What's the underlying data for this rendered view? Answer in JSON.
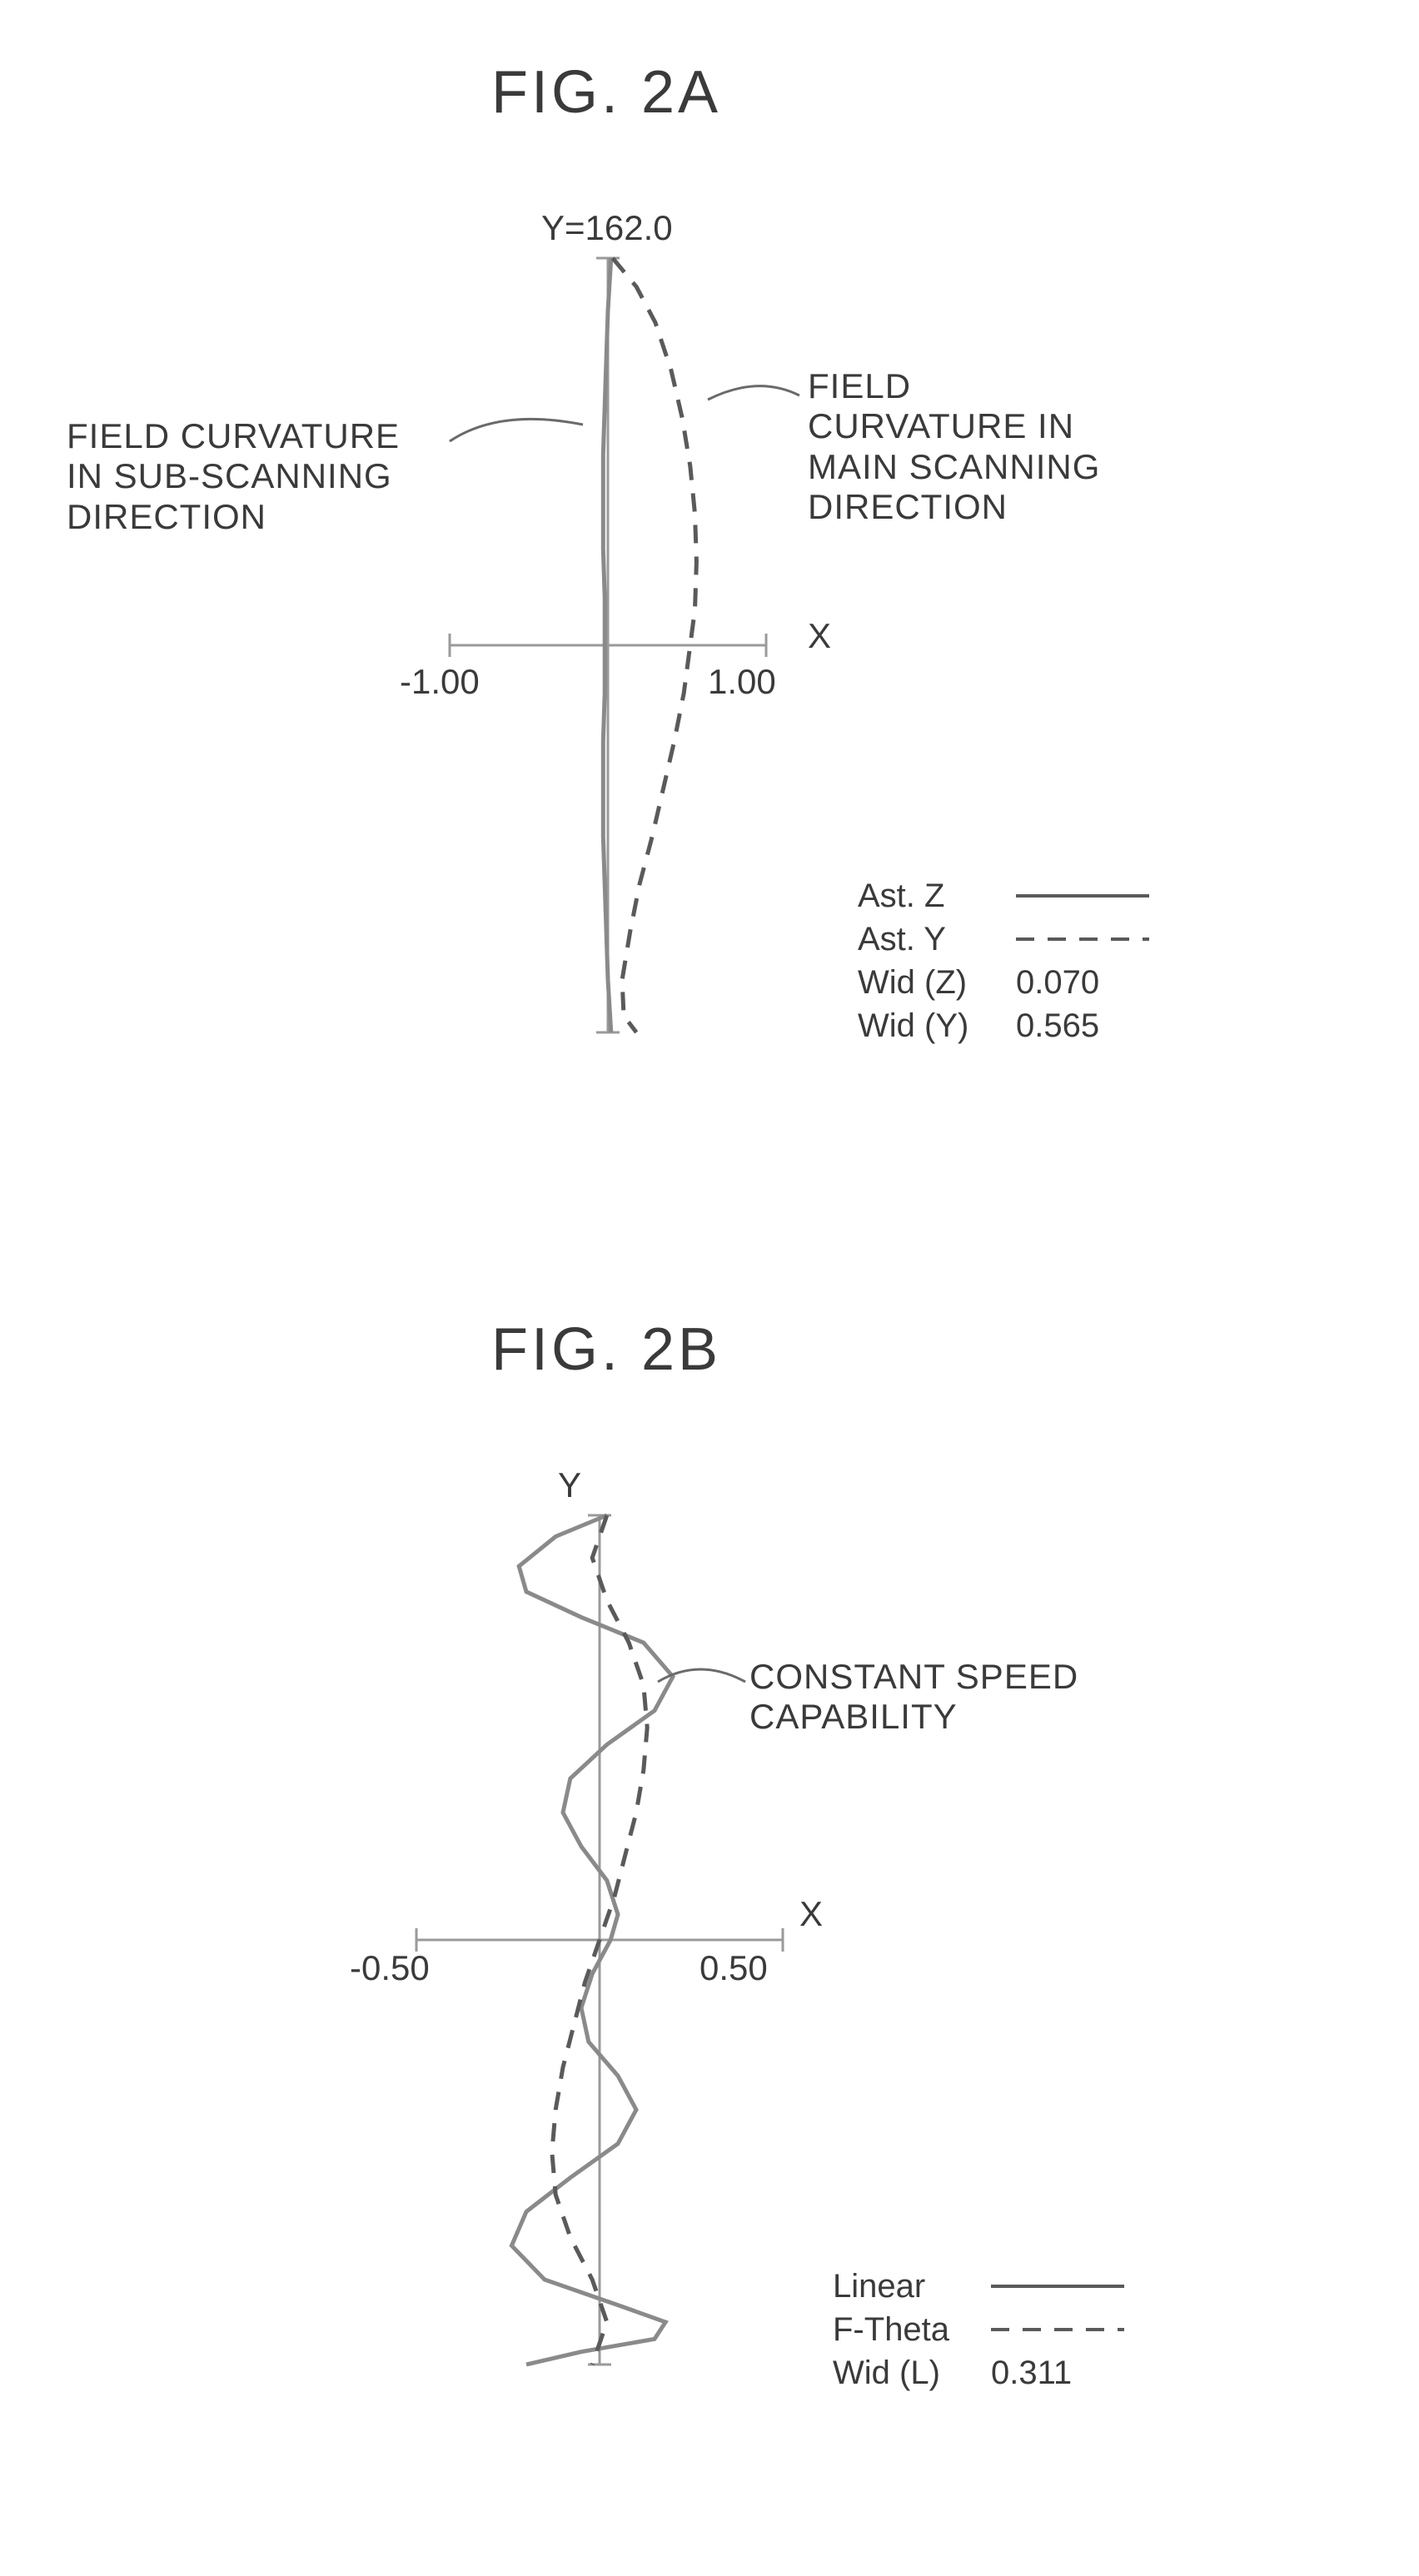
{
  "figA": {
    "title": "FIG. 2A",
    "chart": {
      "type": "field-curvature",
      "y_top_label": "Y=162.0",
      "x_axis_label": "X",
      "xlim": [
        -1.0,
        1.0
      ],
      "xtick_labels": [
        "-1.00",
        "1.00"
      ],
      "y_range": [
        -162.0,
        162.0
      ],
      "background_color": "#ffffff",
      "axis_color": "#9a9a9a",
      "axis_width": 3,
      "tick_len": 18,
      "annotations": {
        "left": {
          "text_lines": [
            "FIELD CURVATURE",
            "IN SUB-SCANNING",
            "DIRECTION"
          ]
        },
        "right": {
          "text_lines": [
            "FIELD",
            "CURVATURE IN",
            "MAIN SCANNING",
            "DIRECTION"
          ]
        }
      },
      "series": [
        {
          "name": "Ast. Z",
          "legend_label": "Ast. Z",
          "style": "solid",
          "color": "#8a8a8a",
          "width": 5,
          "points": [
            [
              0.02,
              162
            ],
            [
              0.0,
              140
            ],
            [
              -0.01,
              120
            ],
            [
              -0.02,
              100
            ],
            [
              -0.03,
              80
            ],
            [
              -0.03,
              60
            ],
            [
              -0.03,
              40
            ],
            [
              -0.02,
              20
            ],
            [
              -0.02,
              0
            ],
            [
              -0.02,
              -20
            ],
            [
              -0.03,
              -40
            ],
            [
              -0.03,
              -60
            ],
            [
              -0.03,
              -80
            ],
            [
              -0.02,
              -100
            ],
            [
              -0.01,
              -120
            ],
            [
              0.0,
              -140
            ],
            [
              0.02,
              -162
            ]
          ]
        },
        {
          "name": "Ast. Y",
          "legend_label": "Ast. Y",
          "style": "dashed",
          "color": "#5a5a5a",
          "width": 5,
          "dash": "22,16",
          "points": [
            [
              0.03,
              162
            ],
            [
              0.18,
              150
            ],
            [
              0.3,
              135
            ],
            [
              0.4,
              115
            ],
            [
              0.47,
              95
            ],
            [
              0.52,
              75
            ],
            [
              0.55,
              55
            ],
            [
              0.56,
              35
            ],
            [
              0.55,
              15
            ],
            [
              0.52,
              0
            ],
            [
              0.48,
              -20
            ],
            [
              0.42,
              -40
            ],
            [
              0.35,
              -60
            ],
            [
              0.28,
              -80
            ],
            [
              0.2,
              -100
            ],
            [
              0.14,
              -120
            ],
            [
              0.09,
              -140
            ],
            [
              0.1,
              -155
            ],
            [
              0.18,
              -162
            ]
          ]
        }
      ],
      "legend": {
        "rows": [
          {
            "label": "Ast. Z",
            "style": "solid"
          },
          {
            "label": "Ast. Y",
            "style": "dashed"
          },
          {
            "label": "Wid (Z)",
            "value": "0.070"
          },
          {
            "label": "Wid (Y)",
            "value": "0.565"
          }
        ],
        "fontsize": 40
      }
    }
  },
  "figB": {
    "title": "FIG. 2B",
    "chart": {
      "type": "linearity",
      "y_axis_label": "Y",
      "x_axis_label": "X",
      "xlim": [
        -0.5,
        0.5
      ],
      "xtick_labels": [
        "-0.50",
        "0.50"
      ],
      "y_range": [
        -1.0,
        1.0
      ],
      "background_color": "#ffffff",
      "axis_color": "#9a9a9a",
      "axis_width": 3,
      "tick_len": 18,
      "annotations": {
        "right": {
          "text_lines": [
            "CONSTANT SPEED",
            "CAPABILITY"
          ]
        }
      },
      "series": [
        {
          "name": "Linear",
          "legend_label": "Linear",
          "style": "solid",
          "color": "#8a8a8a",
          "width": 5,
          "points": [
            [
              0.02,
              1.0
            ],
            [
              -0.12,
              0.95
            ],
            [
              -0.22,
              0.88
            ],
            [
              -0.2,
              0.82
            ],
            [
              -0.05,
              0.76
            ],
            [
              0.12,
              0.7
            ],
            [
              0.2,
              0.62
            ],
            [
              0.15,
              0.54
            ],
            [
              0.02,
              0.46
            ],
            [
              -0.08,
              0.38
            ],
            [
              -0.1,
              0.3
            ],
            [
              -0.05,
              0.22
            ],
            [
              0.02,
              0.14
            ],
            [
              0.05,
              0.06
            ],
            [
              0.03,
              0.0
            ],
            [
              -0.02,
              -0.08
            ],
            [
              -0.05,
              -0.16
            ],
            [
              -0.03,
              -0.24
            ],
            [
              0.05,
              -0.32
            ],
            [
              0.1,
              -0.4
            ],
            [
              0.05,
              -0.48
            ],
            [
              -0.08,
              -0.56
            ],
            [
              -0.2,
              -0.64
            ],
            [
              -0.24,
              -0.72
            ],
            [
              -0.15,
              -0.8
            ],
            [
              0.05,
              -0.86
            ],
            [
              0.18,
              -0.9
            ],
            [
              0.15,
              -0.94
            ],
            [
              -0.05,
              -0.97
            ],
            [
              -0.2,
              -1.0
            ]
          ]
        },
        {
          "name": "F-Theta",
          "legend_label": "F-Theta",
          "style": "dashed",
          "color": "#5a5a5a",
          "width": 5,
          "dash": "22,16",
          "points": [
            [
              0.02,
              1.0
            ],
            [
              -0.02,
              0.9
            ],
            [
              0.02,
              0.8
            ],
            [
              0.08,
              0.7
            ],
            [
              0.12,
              0.6
            ],
            [
              0.13,
              0.5
            ],
            [
              0.12,
              0.4
            ],
            [
              0.1,
              0.3
            ],
            [
              0.07,
              0.2
            ],
            [
              0.04,
              0.1
            ],
            [
              0.0,
              0.0
            ],
            [
              -0.04,
              -0.1
            ],
            [
              -0.07,
              -0.2
            ],
            [
              -0.1,
              -0.3
            ],
            [
              -0.12,
              -0.4
            ],
            [
              -0.13,
              -0.5
            ],
            [
              -0.12,
              -0.6
            ],
            [
              -0.08,
              -0.7
            ],
            [
              -0.02,
              -0.8
            ],
            [
              0.02,
              -0.9
            ],
            [
              -0.02,
              -1.0
            ]
          ]
        }
      ],
      "legend": {
        "rows": [
          {
            "label": "Linear",
            "style": "solid"
          },
          {
            "label": "F-Theta",
            "style": "dashed"
          },
          {
            "label": "Wid (L)",
            "value": "0.311"
          }
        ],
        "fontsize": 40
      }
    }
  }
}
